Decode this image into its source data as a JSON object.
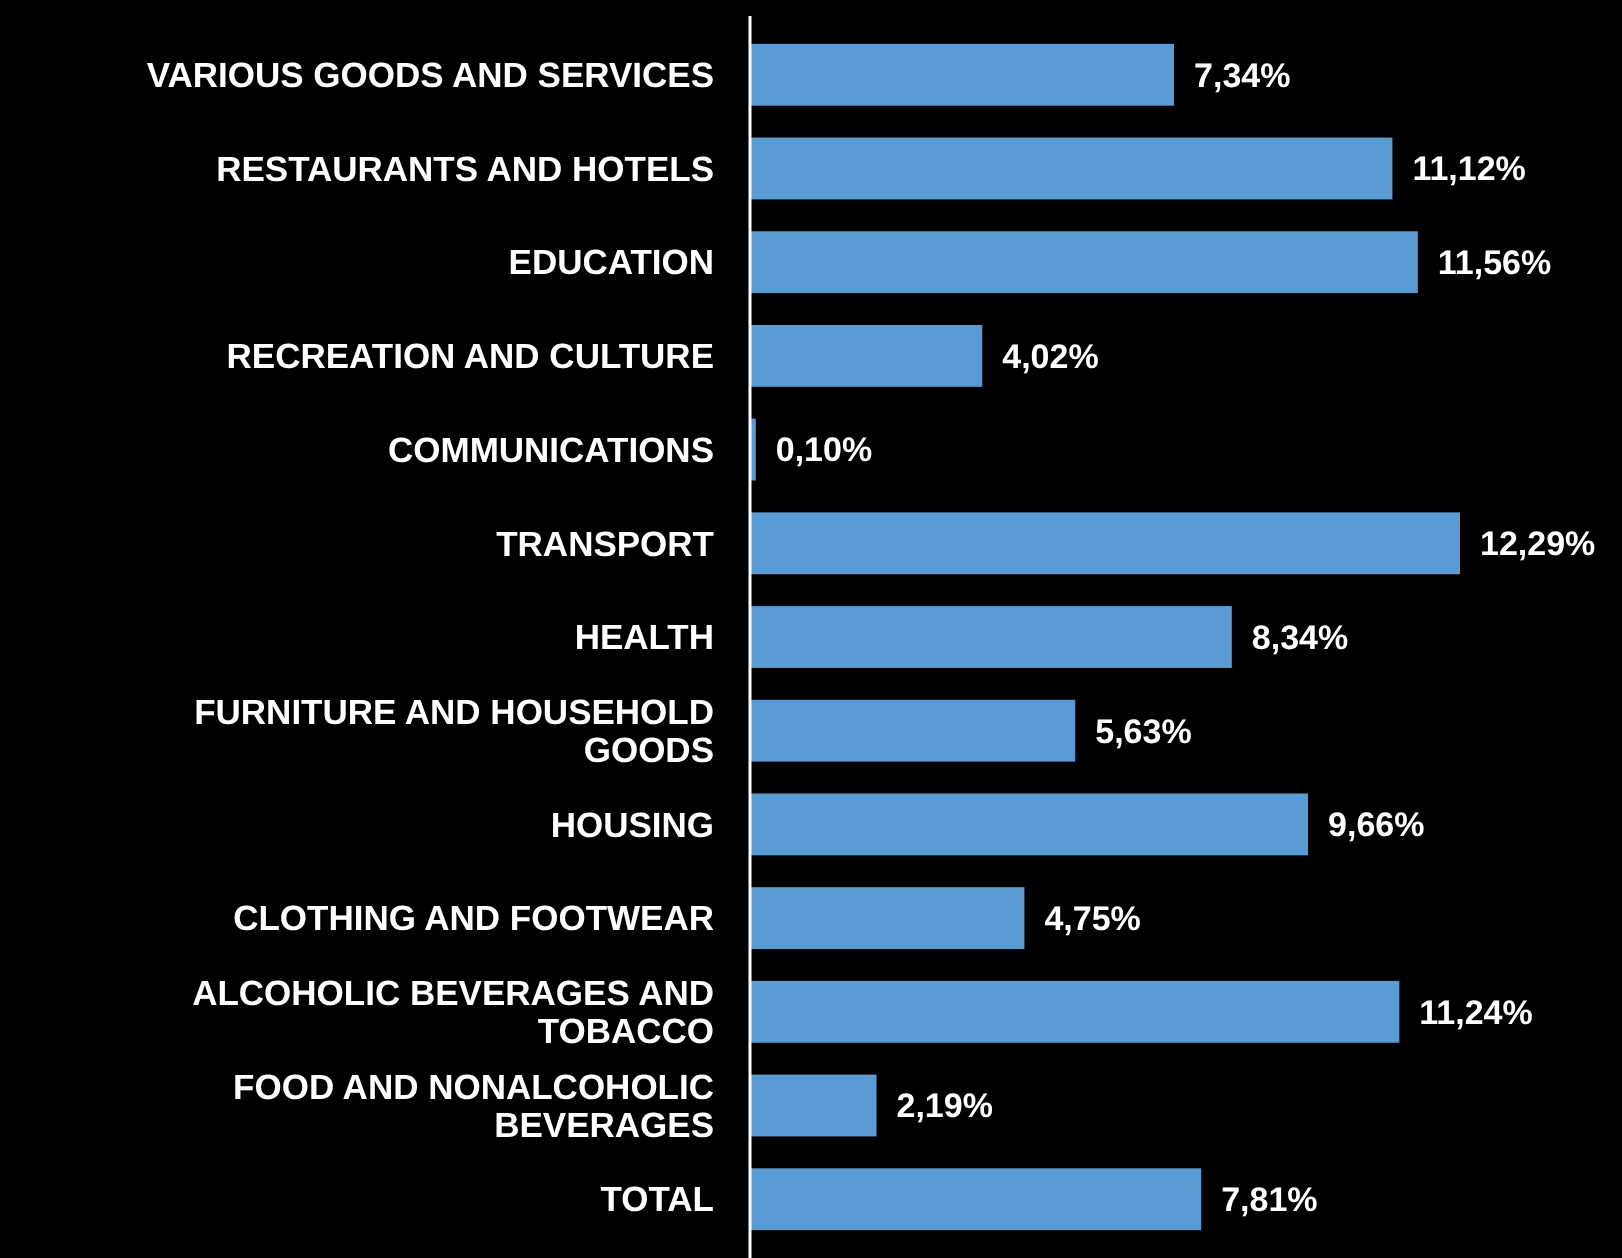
{
  "chart_data": {
    "type": "bar",
    "orientation": "horizontal",
    "categories": [
      "VARIOUS GOODS AND SERVICES",
      "RESTAURANTS AND HOTELS",
      "EDUCATION",
      "RECREATION AND CULTURE",
      "COMMUNICATIONS",
      "TRANSPORT",
      "HEALTH",
      "FURNITURE AND HOUSEHOLD GOODS",
      "HOUSING",
      "CLOTHING AND FOOTWEAR",
      "ALCOHOLIC BEVERAGES AND TOBACCO",
      "FOOD AND NONALCOHOLIC BEVERAGES",
      "TOTAL"
    ],
    "values": [
      7.34,
      11.12,
      11.56,
      4.02,
      0.1,
      12.29,
      8.34,
      5.63,
      9.66,
      4.75,
      11.24,
      2.19,
      7.81
    ],
    "value_labels": [
      "7,34%",
      "11,12%",
      "11,56%",
      "4,02%",
      "0,10%",
      "12,29%",
      "8,34%",
      "5,63%",
      "9,66%",
      "4,75%",
      "11,24%",
      "2,19%",
      "7,81%"
    ],
    "color": "#5b9bd5"
  }
}
